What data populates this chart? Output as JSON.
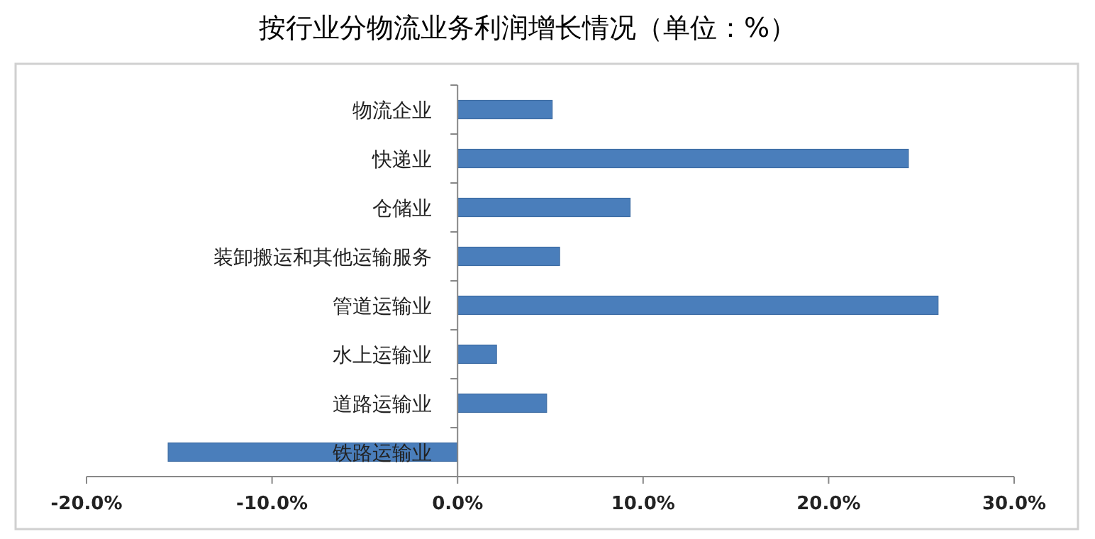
{
  "chart_data": {
    "type": "bar",
    "orientation": "horizontal",
    "title": "按行业分物流业务利润增长情况（单位：%）",
    "categories": [
      "物流企业",
      "快递业",
      "仓储业",
      "装卸搬运和其他运输服务",
      "管道运输业",
      "水上运输业",
      "道路运输业",
      "铁路运输业"
    ],
    "values": [
      5.1,
      24.3,
      9.3,
      5.5,
      25.9,
      2.1,
      4.8,
      -15.6
    ],
    "color": "#4a7ebb",
    "xlim": [
      -20,
      30
    ],
    "xticks": [
      {
        "value": -20,
        "label": "-20.0%"
      },
      {
        "value": -10,
        "label": "-10.0%"
      },
      {
        "value": 0,
        "label": "0.0%"
      },
      {
        "value": 10,
        "label": "10.0%"
      },
      {
        "value": 20,
        "label": "20.0%"
      },
      {
        "value": 30,
        "label": "30.0%"
      }
    ],
    "grid": false
  }
}
